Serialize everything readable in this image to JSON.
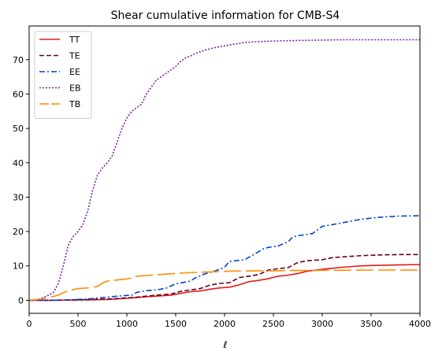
{
  "chart_data": {
    "type": "line",
    "title": "Shear cumulative information for CMB-S4",
    "xlabel": "ℓ",
    "ylabel": "",
    "xlim": [
      0,
      4000
    ],
    "ylim": [
      -3.8,
      79.8
    ],
    "xticks": [
      0,
      500,
      1000,
      1500,
      2000,
      2500,
      3000,
      3500,
      4000
    ],
    "yticks": [
      0,
      10,
      20,
      30,
      40,
      50,
      60,
      70
    ],
    "grid": false,
    "legend_position": "top-left",
    "series": [
      {
        "name": "TT",
        "color": "#e41a1c",
        "dash": "",
        "width": 1.6,
        "x": [
          0,
          200,
          400,
          600,
          800,
          900,
          1000,
          1100,
          1200,
          1300,
          1450,
          1550,
          1650,
          1750,
          1850,
          1950,
          2050,
          2150,
          2250,
          2350,
          2450,
          2550,
          2650,
          2750,
          2850,
          3000,
          3200,
          3400,
          3600,
          3800,
          4000
        ],
        "y": [
          0,
          0,
          0.05,
          0.1,
          0.25,
          0.4,
          0.6,
          0.8,
          1.0,
          1.2,
          1.5,
          2.0,
          2.5,
          2.7,
          3.2,
          3.6,
          3.8,
          4.5,
          5.4,
          5.8,
          6.3,
          7.0,
          7.3,
          7.8,
          8.5,
          9.0,
          9.6,
          10.0,
          10.2,
          10.3,
          10.4
        ]
      },
      {
        "name": "TE",
        "color": "#67001f",
        "dash": "6,3",
        "width": 1.6,
        "x": [
          0,
          200,
          400,
          600,
          800,
          900,
          1000,
          1100,
          1200,
          1300,
          1450,
          1550,
          1650,
          1750,
          1850,
          1950,
          2050,
          2150,
          2250,
          2350,
          2450,
          2550,
          2650,
          2750,
          2850,
          3000,
          3100,
          3200,
          3400,
          3600,
          3800,
          4000
        ],
        "y": [
          0,
          0,
          0.1,
          0.2,
          0.35,
          0.5,
          0.7,
          0.9,
          1.2,
          1.5,
          1.8,
          2.6,
          3.0,
          3.4,
          4.4,
          4.9,
          5.1,
          6.6,
          7.0,
          7.5,
          8.8,
          9.2,
          9.5,
          11.0,
          11.5,
          11.8,
          12.4,
          12.6,
          13.0,
          13.2,
          13.3,
          13.3
        ]
      },
      {
        "name": "EE",
        "color": "#0044cc",
        "dash": "7,3,2,3",
        "width": 1.6,
        "x": [
          0,
          200,
          400,
          600,
          800,
          900,
          1000,
          1050,
          1100,
          1200,
          1300,
          1400,
          1500,
          1600,
          1650,
          1700,
          1800,
          1900,
          2000,
          2050,
          2200,
          2250,
          2400,
          2450,
          2550,
          2650,
          2700,
          2800,
          2900,
          3000,
          3200,
          3400,
          3600,
          3800,
          4000
        ],
        "y": [
          0,
          0,
          0.1,
          0.4,
          0.9,
          1.2,
          1.4,
          1.5,
          2.3,
          2.8,
          3.0,
          3.5,
          4.8,
          5.3,
          5.6,
          6.5,
          7.7,
          8.5,
          9.6,
          11.3,
          11.8,
          12.5,
          15.0,
          15.4,
          15.8,
          17.0,
          18.5,
          19.0,
          19.4,
          21.5,
          22.5,
          23.6,
          24.2,
          24.5,
          24.6
        ]
      },
      {
        "name": "EB",
        "color": "#7a1fa2",
        "dash": "2,2",
        "width": 1.6,
        "x": [
          0,
          100,
          200,
          250,
          300,
          350,
          400,
          450,
          500,
          550,
          600,
          650,
          700,
          750,
          800,
          850,
          900,
          950,
          1000,
          1050,
          1100,
          1150,
          1200,
          1250,
          1300,
          1350,
          1400,
          1450,
          1500,
          1550,
          1600,
          1650,
          1700,
          1750,
          1800,
          1900,
          2000,
          2100,
          2200,
          2400,
          2600,
          2800,
          3000,
          3200,
          3500,
          3800,
          4000
        ],
        "y": [
          0,
          0.3,
          1.5,
          2.3,
          5,
          10,
          16,
          18.5,
          20,
          22,
          26,
          32,
          36.5,
          38.5,
          40,
          42,
          46,
          50,
          53,
          55,
          56,
          57,
          60,
          62,
          64,
          65,
          66,
          67,
          68,
          69.5,
          70.5,
          71,
          71.8,
          72.3,
          72.8,
          73.5,
          74,
          74.5,
          75,
          75.3,
          75.5,
          75.6,
          75.7,
          75.8,
          75.8,
          75.8,
          75.8
        ]
      },
      {
        "name": "TB",
        "color": "#ff8c00",
        "dash": "22,6",
        "width": 1.6,
        "x": [
          0,
          100,
          200,
          300,
          350,
          400,
          500,
          600,
          700,
          750,
          800,
          900,
          1000,
          1050,
          1100,
          1200,
          1300,
          1400,
          1500,
          1600,
          1700,
          1800,
          1900,
          2000,
          2100,
          2300,
          2500,
          2700,
          2900,
          3200,
          3500,
          3800,
          4000
        ],
        "y": [
          0,
          0.2,
          0.8,
          1.5,
          2.2,
          2.8,
          3.4,
          3.6,
          4.0,
          5.0,
          5.6,
          5.9,
          6.2,
          6.5,
          7.0,
          7.2,
          7.4,
          7.6,
          7.8,
          8.0,
          8.1,
          8.2,
          8.3,
          8.4,
          8.5,
          8.55,
          8.6,
          8.65,
          8.7,
          8.75,
          8.8,
          8.8,
          8.8
        ]
      }
    ]
  }
}
